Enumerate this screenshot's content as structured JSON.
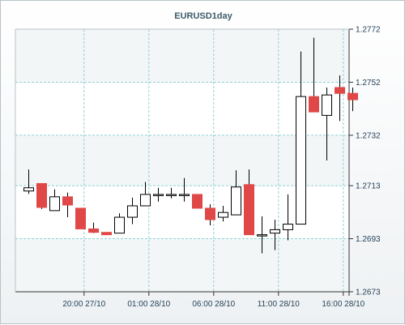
{
  "chart_data": {
    "type": "candlestick",
    "title": "EURUSD1day",
    "xlabel": "",
    "ylabel": "",
    "ylim": [
      1.2673,
      1.2772
    ],
    "yticks": [
      "1.2772",
      "1.2752",
      "1.2732",
      "1.2713",
      "1.2693",
      "1.2673"
    ],
    "xticks": [
      "20:00 27/10",
      "01:00 28/10",
      "06:00 28/10",
      "11:00 28/10",
      "16:00 28/10"
    ],
    "xtick_index": [
      4.3,
      9.3,
      14.3,
      19.3,
      24.3
    ],
    "grid": true,
    "colors": {
      "up_fill": "#ffffff",
      "down_fill": "#e04848",
      "wick": "#000000",
      "grid": "#8fd0d6"
    },
    "candles": [
      {
        "o": 1.2711,
        "h": 1.27191,
        "l": 1.27099,
        "c": 1.27122
      },
      {
        "o": 1.27138,
        "h": 1.27138,
        "l": 1.27042,
        "c": 1.27048
      },
      {
        "o": 1.27036,
        "h": 1.27116,
        "l": 1.27036,
        "c": 1.27088
      },
      {
        "o": 1.27088,
        "h": 1.27104,
        "l": 1.27011,
        "c": 1.27057
      },
      {
        "o": 1.27045,
        "h": 1.27045,
        "l": 1.26967,
        "c": 1.26967
      },
      {
        "o": 1.26967,
        "h": 1.26991,
        "l": 1.26951,
        "c": 1.26954
      },
      {
        "o": 1.26954,
        "h": 1.26954,
        "l": 1.26945,
        "c": 1.26945
      },
      {
        "o": 1.26951,
        "h": 1.27026,
        "l": 1.26951,
        "c": 1.27011
      },
      {
        "o": 1.27011,
        "h": 1.27085,
        "l": 1.26985,
        "c": 1.27054
      },
      {
        "o": 1.27054,
        "h": 1.27144,
        "l": 1.27054,
        "c": 1.27097
      },
      {
        "o": 1.27097,
        "h": 1.27122,
        "l": 1.2707,
        "c": 1.27097
      },
      {
        "o": 1.27097,
        "h": 1.27122,
        "l": 1.27082,
        "c": 1.27097
      },
      {
        "o": 1.27097,
        "h": 1.27159,
        "l": 1.2707,
        "c": 1.27097
      },
      {
        "o": 1.27097,
        "h": 1.27097,
        "l": 1.27045,
        "c": 1.27045
      },
      {
        "o": 1.27045,
        "h": 1.2706,
        "l": 1.2698,
        "c": 1.27002
      },
      {
        "o": 1.27011,
        "h": 1.27054,
        "l": 1.26995,
        "c": 1.27029
      },
      {
        "o": 1.2702,
        "h": 1.27188,
        "l": 1.2702,
        "c": 1.27125
      },
      {
        "o": 1.27134,
        "h": 1.27191,
        "l": 1.26945,
        "c": 1.26945
      },
      {
        "o": 1.26945,
        "h": 1.27014,
        "l": 1.26875,
        "c": 1.26945
      },
      {
        "o": 1.26951,
        "h": 1.27002,
        "l": 1.26887,
        "c": 1.26964
      },
      {
        "o": 1.26964,
        "h": 1.27097,
        "l": 1.26924,
        "c": 1.26985
      },
      {
        "o": 1.26985,
        "h": 1.27636,
        "l": 1.26985,
        "c": 1.27466
      },
      {
        "o": 1.27466,
        "h": 1.27688,
        "l": 1.27408,
        "c": 1.27408
      },
      {
        "o": 1.27395,
        "h": 1.275,
        "l": 1.27225,
        "c": 1.27472
      },
      {
        "o": 1.275,
        "h": 1.27546,
        "l": 1.27374,
        "c": 1.27478
      },
      {
        "o": 1.27478,
        "h": 1.275,
        "l": 1.27411,
        "c": 1.27454
      }
    ]
  }
}
